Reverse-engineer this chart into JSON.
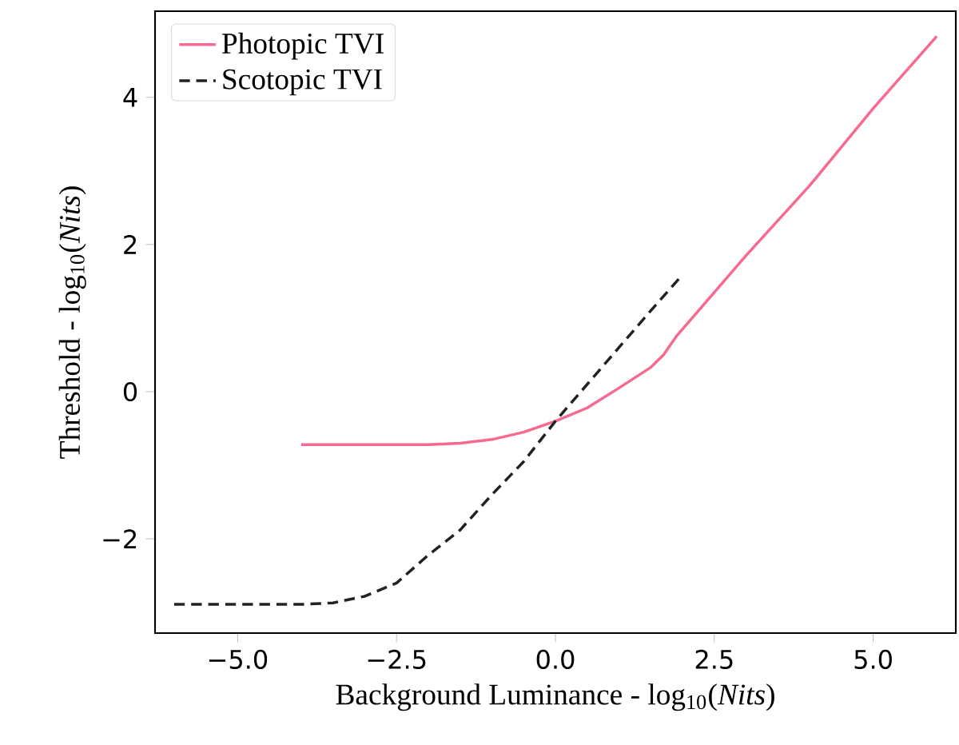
{
  "chart_data": {
    "type": "line",
    "xlabel": "Background Luminance - log$_{10}$(*Nits*)",
    "ylabel": "Threshold - log$_{10}$(*Nits*)",
    "xlim": [
      -6.3,
      6.3
    ],
    "ylim": [
      -3.28,
      5.17
    ],
    "xticks": [
      {
        "value": -5,
        "label": "−5.0"
      },
      {
        "value": -2.5,
        "label": "−2.5"
      },
      {
        "value": 0,
        "label": "0.0"
      },
      {
        "value": 2.5,
        "label": "2.5"
      },
      {
        "value": 5,
        "label": "5.0"
      }
    ],
    "yticks": [
      {
        "value": -2,
        "label": "−2"
      },
      0,
      2,
      4
    ],
    "legend": "top left",
    "grid": false,
    "series": [
      {
        "name": "Photopic TVI",
        "color": "#f7698f",
        "line_style": "solid",
        "x": [
          -4,
          -3,
          -2,
          -1.5,
          -1,
          -0.5,
          0,
          0.5,
          1,
          1.5,
          1.7,
          1.9,
          2.2,
          3,
          4,
          5,
          6
        ],
        "values": [
          -0.72,
          -0.72,
          -0.72,
          -0.7,
          -0.65,
          -0.55,
          -0.4,
          -0.22,
          0.05,
          0.33,
          0.5,
          0.75,
          1.05,
          1.85,
          2.8,
          3.85,
          4.83
        ]
      },
      {
        "name": "Scotopic TVI",
        "color": "#222222",
        "line_style": "dashed",
        "x": [
          -6,
          -4,
          -3.5,
          -3,
          -2.5,
          -2,
          -1.5,
          -1,
          -0.5,
          0,
          0.5,
          1,
          1.5,
          2
        ],
        "values": [
          -2.89,
          -2.89,
          -2.87,
          -2.78,
          -2.6,
          -2.22,
          -1.88,
          -1.4,
          -0.95,
          -0.4,
          0.1,
          0.6,
          1.1,
          1.59
        ]
      }
    ]
  }
}
